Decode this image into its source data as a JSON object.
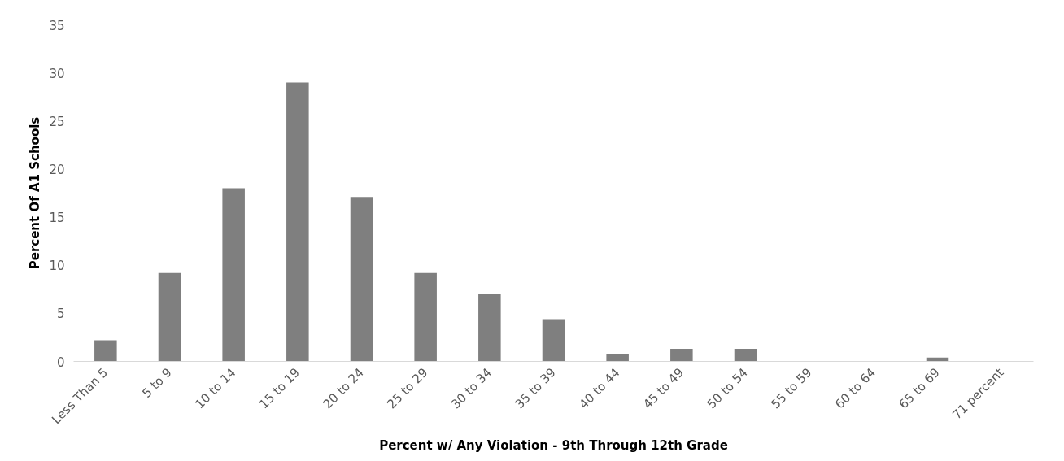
{
  "chart_data": {
    "type": "bar",
    "xlabel": "Percent w/ Any Violation - 9th Through 12th Grade",
    "ylabel": "Percent Of A1 Schools",
    "categories": [
      "Less Than 5",
      "5 to 9",
      "10 to 14",
      "15 to 19",
      "20 to 24",
      "25 to 29",
      "30 to 34",
      "35 to 39",
      "40 to 44",
      "45 to 49",
      "50 to 54",
      "55 to 59",
      "60 to 64",
      "65 to 69",
      "71 percent"
    ],
    "values": [
      2.2,
      9.2,
      18,
      29,
      17.1,
      9.2,
      7,
      4.4,
      0.8,
      1.3,
      1.3,
      0,
      0,
      0.4,
      0
    ],
    "color": "#7f7f7f",
    "ylim": [
      0,
      35
    ],
    "yticks": [
      0,
      5,
      10,
      15,
      20,
      25,
      30,
      35
    ],
    "grid": false
  }
}
